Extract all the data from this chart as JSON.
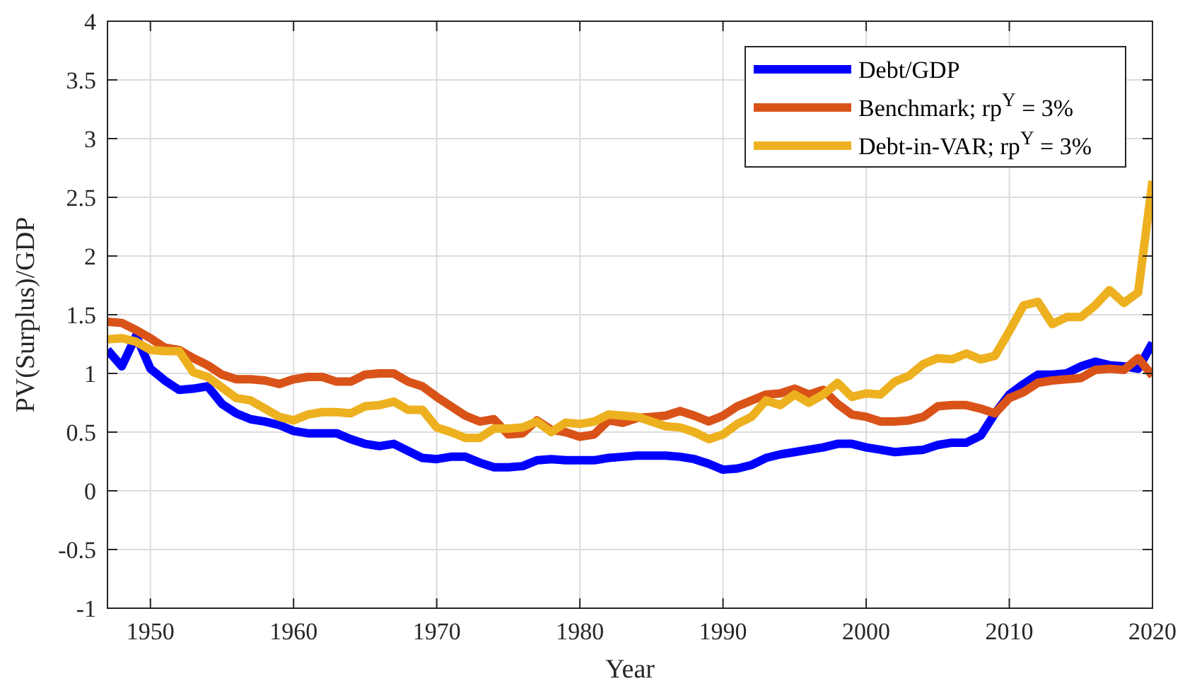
{
  "chart_data": {
    "type": "line",
    "xlabel": "Year",
    "ylabel": "PV(Surplus)/GDP",
    "x": [
      1947,
      1948,
      1949,
      1950,
      1951,
      1952,
      1953,
      1954,
      1955,
      1956,
      1957,
      1958,
      1959,
      1960,
      1961,
      1962,
      1963,
      1964,
      1965,
      1966,
      1967,
      1968,
      1969,
      1970,
      1971,
      1972,
      1973,
      1974,
      1975,
      1976,
      1977,
      1978,
      1979,
      1980,
      1981,
      1982,
      1983,
      1984,
      1985,
      1986,
      1987,
      1988,
      1989,
      1990,
      1991,
      1992,
      1993,
      1994,
      1995,
      1996,
      1997,
      1998,
      1999,
      2000,
      2001,
      2002,
      2003,
      2004,
      2005,
      2006,
      2007,
      2008,
      2009,
      2010,
      2011,
      2012,
      2013,
      2014,
      2015,
      2016,
      2017,
      2018,
      2019,
      2020
    ],
    "series": [
      {
        "name": "Debt/GDP",
        "color": "#0000ff",
        "values": [
          1.2,
          1.06,
          1.32,
          1.04,
          0.94,
          0.86,
          0.87,
          0.89,
          0.74,
          0.66,
          0.61,
          0.59,
          0.56,
          0.51,
          0.49,
          0.49,
          0.49,
          0.44,
          0.4,
          0.38,
          0.4,
          0.34,
          0.28,
          0.27,
          0.29,
          0.29,
          0.24,
          0.2,
          0.2,
          0.21,
          0.26,
          0.27,
          0.26,
          0.26,
          0.26,
          0.28,
          0.29,
          0.3,
          0.3,
          0.3,
          0.29,
          0.27,
          0.23,
          0.18,
          0.19,
          0.22,
          0.28,
          0.31,
          0.33,
          0.35,
          0.37,
          0.4,
          0.4,
          0.37,
          0.35,
          0.33,
          0.34,
          0.35,
          0.39,
          0.41,
          0.41,
          0.47,
          0.66,
          0.82,
          0.91,
          0.99,
          0.99,
          1.0,
          1.06,
          1.1,
          1.07,
          1.06,
          1.04,
          1.26
        ]
      },
      {
        "name": "Benchmark; rp$^{Y}$ = 3%",
        "color": "#d95319",
        "values": [
          1.44,
          1.43,
          1.37,
          1.3,
          1.22,
          1.2,
          1.13,
          1.07,
          0.99,
          0.95,
          0.95,
          0.94,
          0.91,
          0.95,
          0.97,
          0.97,
          0.93,
          0.93,
          0.99,
          1.0,
          1.0,
          0.93,
          0.89,
          0.8,
          0.72,
          0.64,
          0.59,
          0.61,
          0.48,
          0.49,
          0.6,
          0.52,
          0.5,
          0.46,
          0.48,
          0.6,
          0.58,
          0.62,
          0.63,
          0.64,
          0.68,
          0.64,
          0.59,
          0.64,
          0.72,
          0.77,
          0.82,
          0.83,
          0.87,
          0.82,
          0.86,
          0.74,
          0.65,
          0.63,
          0.59,
          0.59,
          0.6,
          0.63,
          0.72,
          0.73,
          0.73,
          0.7,
          0.66,
          0.79,
          0.84,
          0.92,
          0.94,
          0.95,
          0.96,
          1.03,
          1.04,
          1.03,
          1.13,
          0.98
        ]
      },
      {
        "name": "Debt-in-VAR; rp$^{Y}$ = 3%",
        "color": "#edb120",
        "values": [
          1.29,
          1.3,
          1.27,
          1.2,
          1.19,
          1.19,
          1.01,
          0.97,
          0.88,
          0.79,
          0.77,
          0.7,
          0.63,
          0.6,
          0.65,
          0.67,
          0.67,
          0.66,
          0.72,
          0.73,
          0.76,
          0.69,
          0.69,
          0.54,
          0.5,
          0.45,
          0.45,
          0.53,
          0.53,
          0.54,
          0.59,
          0.5,
          0.58,
          0.57,
          0.59,
          0.65,
          0.64,
          0.63,
          0.59,
          0.55,
          0.54,
          0.5,
          0.44,
          0.48,
          0.57,
          0.63,
          0.77,
          0.73,
          0.82,
          0.75,
          0.82,
          0.92,
          0.8,
          0.83,
          0.82,
          0.93,
          0.98,
          1.08,
          1.13,
          1.12,
          1.17,
          1.12,
          1.15,
          1.36,
          1.58,
          1.61,
          1.42,
          1.48,
          1.48,
          1.58,
          1.71,
          1.6,
          1.69,
          2.64
        ]
      }
    ],
    "xlim": [
      1947,
      2020
    ],
    "xticks": [
      1950,
      1960,
      1970,
      1980,
      1990,
      2000,
      2010,
      2020
    ],
    "ylim": [
      -1,
      4
    ],
    "yticks": [
      -1,
      -0.5,
      0,
      0.5,
      1,
      1.5,
      2,
      2.5,
      3,
      3.5,
      4
    ],
    "grid": true,
    "legend": "top right",
    "line_style": "solid",
    "marker": "none"
  }
}
